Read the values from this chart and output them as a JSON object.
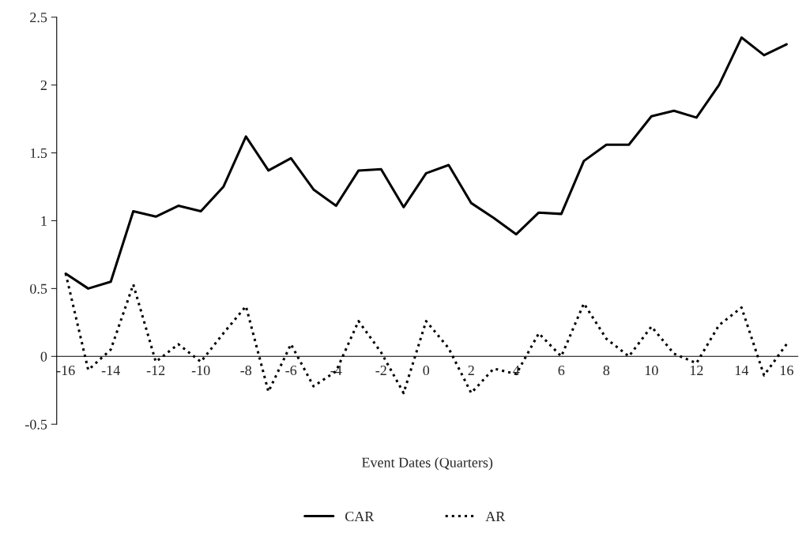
{
  "chart_data": {
    "type": "line",
    "xlabel": "Event Dates (Quarters)",
    "x": [
      -16,
      -15,
      -14,
      -13,
      -12,
      -11,
      -10,
      -9,
      -8,
      -7,
      -6,
      -5,
      -4,
      -3,
      -2,
      -1,
      0,
      1,
      2,
      3,
      4,
      5,
      6,
      7,
      8,
      9,
      10,
      11,
      12,
      13,
      14,
      15,
      16
    ],
    "series": [
      {
        "name": "CAR",
        "color": "#000000",
        "line_style": "solid",
        "values": [
          0.61,
          0.5,
          0.55,
          1.07,
          1.03,
          1.11,
          1.07,
          1.25,
          1.62,
          1.37,
          1.46,
          1.23,
          1.11,
          1.37,
          1.38,
          1.1,
          1.35,
          1.41,
          1.13,
          1.02,
          0.9,
          1.06,
          1.05,
          1.44,
          1.56,
          1.56,
          1.77,
          1.81,
          1.76,
          2.0,
          2.35,
          2.22,
          2.3
        ]
      },
      {
        "name": "AR",
        "color": "#000000",
        "line_style": "dotted",
        "values": [
          0.61,
          -0.1,
          0.05,
          0.53,
          -0.04,
          0.09,
          -0.04,
          0.17,
          0.37,
          -0.26,
          0.09,
          -0.22,
          -0.11,
          0.26,
          0.03,
          -0.27,
          0.26,
          0.06,
          -0.27,
          -0.09,
          -0.13,
          0.17,
          0.0,
          0.39,
          0.13,
          0.0,
          0.22,
          0.02,
          -0.05,
          0.23,
          0.36,
          -0.14,
          0.09
        ]
      }
    ],
    "xlim": [
      -16.4,
      16.5
    ],
    "xticks": [
      -16,
      -14,
      -12,
      -10,
      -8,
      -6,
      -4,
      -2,
      0,
      2,
      4,
      6,
      8,
      10,
      12,
      14,
      16
    ],
    "ylim": [
      -0.5,
      2.5
    ],
    "yticks": [
      -0.5,
      0,
      0.5,
      1,
      1.5,
      2,
      2.5
    ],
    "grid": false,
    "legend": "bottom"
  }
}
